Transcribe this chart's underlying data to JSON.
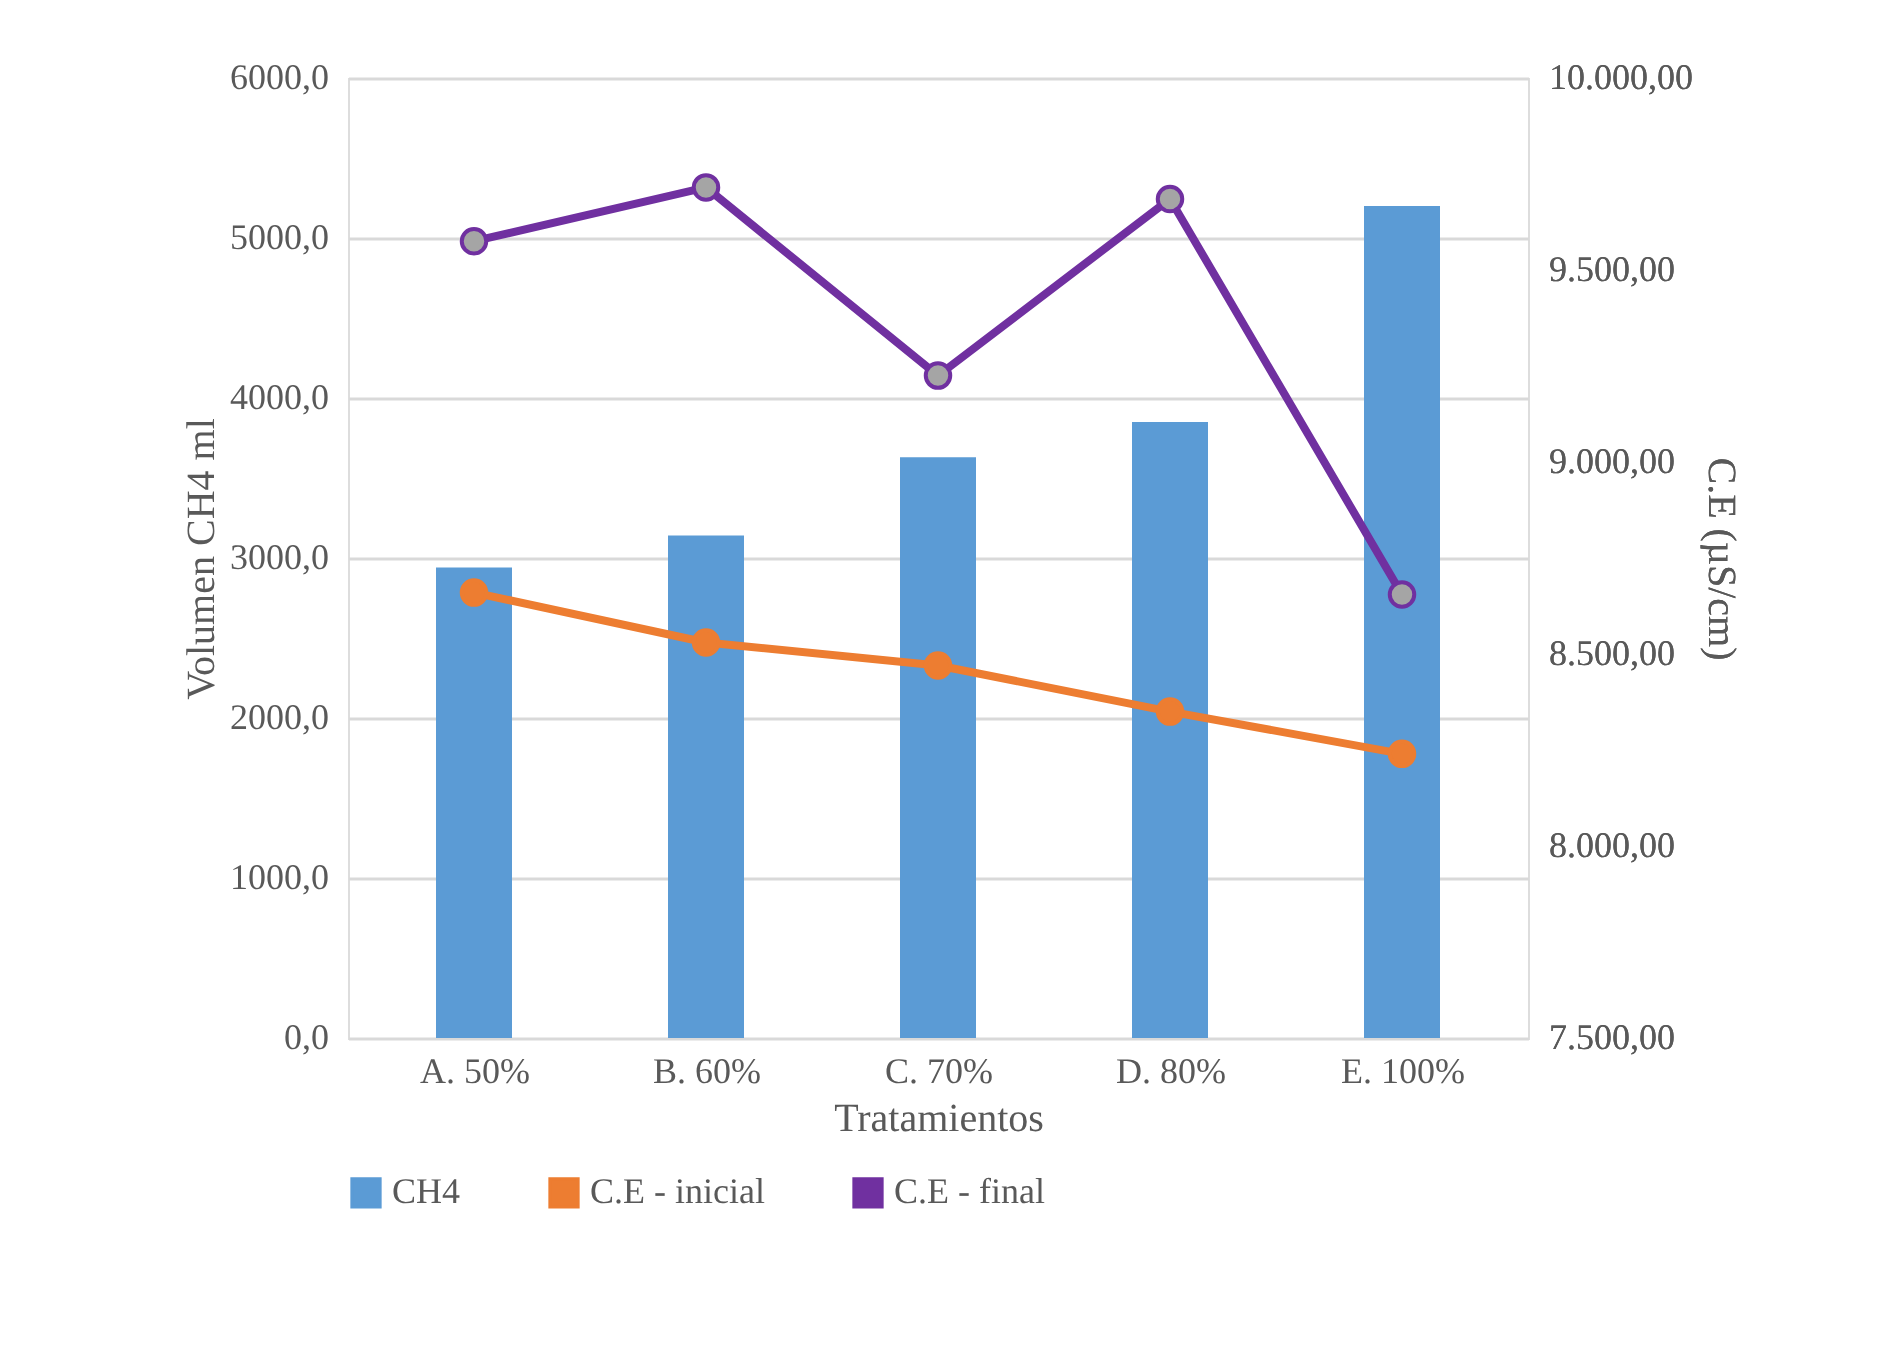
{
  "chart_data": {
    "type": "bar",
    "xlabel": "Tratamientos",
    "ylabel": "Volumen  CH4  ml",
    "y2label": "C.E (µS/cm)",
    "categories": [
      "A. 50%",
      "B. 60%",
      "C. 70%",
      "D. 80%",
      "E. 100%"
    ],
    "series": [
      {
        "name": "CH4",
        "color": "#5b9bd5",
        "values": [
          2940,
          3140,
          3630,
          3850,
          5200
        ]
      },
      {
        "name": "C.E - inicial",
        "type": "line",
        "axis": "y2",
        "marker": "circle",
        "color": "#ed7d31",
        "values": [
          8660,
          8530,
          8470,
          8350,
          8240
        ]
      },
      {
        "name": "C.E - final",
        "type": "line",
        "axis": "y2",
        "marker": "circle",
        "color": "#7030a0",
        "values": [
          9575,
          9715,
          9225,
          9685,
          8655
        ]
      }
    ],
    "ylim": [
      0,
      6000
    ],
    "yticks": [
      {
        "value": 0,
        "label": "0,0"
      },
      {
        "value": 1000,
        "label": "1000,0"
      },
      {
        "value": 2000,
        "label": "2000,0"
      },
      {
        "value": 3000,
        "label": "3000,0"
      },
      {
        "value": 4000,
        "label": "4000,0"
      },
      {
        "value": 5000,
        "label": "5000,0"
      },
      {
        "value": 6000,
        "label": "6000,0"
      }
    ],
    "y2lim": [
      7500,
      10000
    ],
    "y2ticks": [
      {
        "value": 7500,
        "label": "7.500,00"
      },
      {
        "value": 8000,
        "label": "8.000,00"
      },
      {
        "value": 8500,
        "label": "8.500,00"
      },
      {
        "value": 9000,
        "label": "9.000,00"
      },
      {
        "value": 9500,
        "label": "9.500,00"
      },
      {
        "value": 10000,
        "label": "10.000,00"
      }
    ],
    "grid": "y",
    "legend": "bottom"
  }
}
